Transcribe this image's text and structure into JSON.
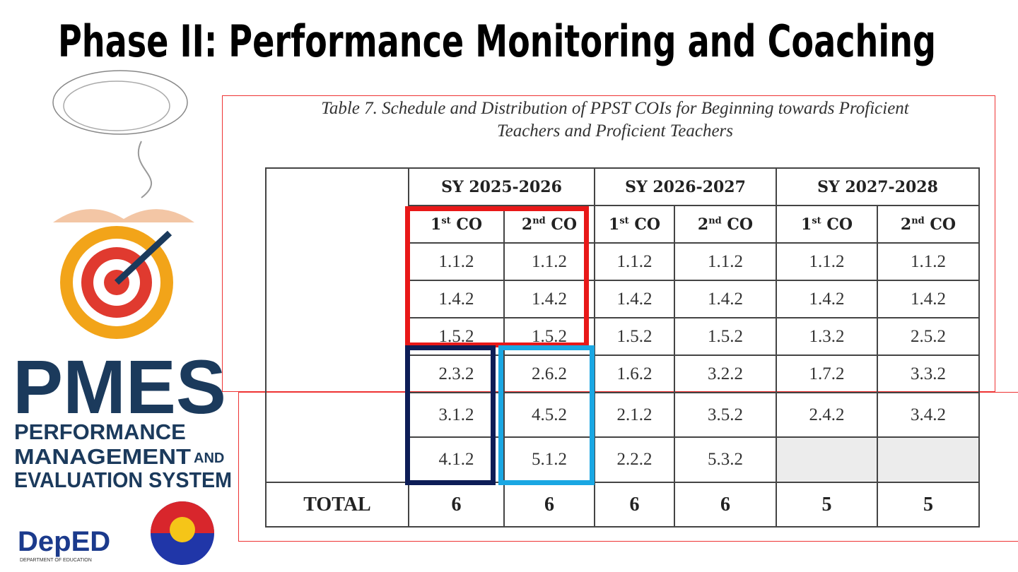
{
  "header": {
    "title": "Phase II: Performance Monitoring and Coaching"
  },
  "logo": {
    "acronym": "PMES",
    "line1": "PERFORMANCE",
    "line2": "MANAGEMENT",
    "line2_suffix": "AND",
    "line3": "EVALUATION SYSTEM",
    "deped": "DepED",
    "deped_sub": "DEPARTMENT OF EDUCATION"
  },
  "table": {
    "caption_line1": "Table 7. Schedule and Distribution of PPST COIs for Beginning towards Proficient",
    "caption_line2": "Teachers and Proficient Teachers",
    "years": [
      "SY 2025-2026",
      "SY 2026-2027",
      "SY 2027-2028"
    ],
    "columns": [
      {
        "ordinal": "1",
        "suffix": "st",
        "label": "CO"
      },
      {
        "ordinal": "2",
        "suffix": "nd",
        "label": "CO"
      },
      {
        "ordinal": "1",
        "suffix": "st",
        "label": "CO"
      },
      {
        "ordinal": "2",
        "suffix": "nd",
        "label": "CO"
      },
      {
        "ordinal": "1",
        "suffix": "st",
        "label": "CO"
      },
      {
        "ordinal": "2",
        "suffix": "nd",
        "label": "CO"
      }
    ],
    "rows": [
      [
        "1.1.2",
        "1.1.2",
        "1.1.2",
        "1.1.2",
        "1.1.2",
        "1.1.2"
      ],
      [
        "1.4.2",
        "1.4.2",
        "1.4.2",
        "1.4.2",
        "1.4.2",
        "1.4.2"
      ],
      [
        "1.5.2",
        "1.5.2",
        "1.5.2",
        "1.5.2",
        "1.3.2",
        "2.5.2"
      ],
      [
        "2.3.2",
        "2.6.2",
        "1.6.2",
        "3.2.2",
        "1.7.2",
        "3.3.2"
      ],
      [
        "3.1.2",
        "4.5.2",
        "2.1.2",
        "3.5.2",
        "2.4.2",
        "3.4.2"
      ],
      [
        "4.1.2",
        "5.1.2",
        "2.2.2",
        "5.3.2",
        null,
        null
      ]
    ],
    "total_label": "TOTAL",
    "totals": [
      6,
      6,
      6,
      6,
      5,
      5
    ]
  }
}
